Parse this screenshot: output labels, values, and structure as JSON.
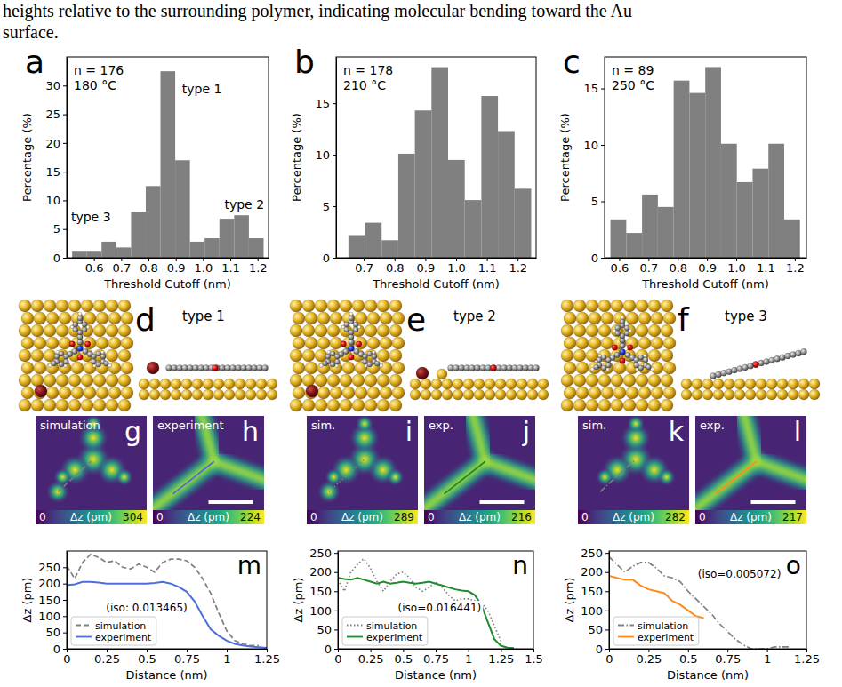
{
  "caption": [
    "heights relative to the surrounding polymer, indicating molecular bending toward the Au",
    "surface."
  ],
  "chart_data": [
    {
      "type": "histogram",
      "letter": "a",
      "annotations": [
        "n = 176",
        "180 °C",
        "type 1",
        "type 2",
        "type 3"
      ],
      "xlabel": "Threshold Cutoff (nm)",
      "ylabel": "Percentage (%)",
      "color": "#808080",
      "bins": [
        0.52,
        0.574,
        0.628,
        0.682,
        0.736,
        0.79,
        0.844,
        0.898,
        0.952,
        1.006,
        1.06,
        1.114,
        1.168,
        1.222
      ],
      "values": [
        1.2,
        1.2,
        2.8,
        1.8,
        8.0,
        12.5,
        32.5,
        17.0,
        2.8,
        3.4,
        6.8,
        7.4,
        3.4
      ],
      "xlim": [
        0.5,
        1.24
      ],
      "ylim": [
        0,
        35
      ],
      "xticks": [
        0.6,
        0.7,
        0.8,
        0.9,
        {
          "value": 1,
          "label": "1.0"
        },
        1.1,
        1.2
      ],
      "yticks": [
        0,
        5,
        10,
        15,
        20,
        25,
        30
      ]
    },
    {
      "type": "histogram",
      "letter": "b",
      "annotations": [
        "n = 178",
        "210 °C"
      ],
      "xlabel": "Threshold Cutoff (nm)",
      "ylabel": "Percentage (%)",
      "color": "#808080",
      "bins": [
        0.65,
        0.704,
        0.758,
        0.812,
        0.866,
        0.92,
        0.974,
        1.028,
        1.082,
        1.136,
        1.19,
        1.244
      ],
      "values": [
        2.2,
        3.4,
        1.7,
        10.1,
        14.3,
        18.5,
        9.5,
        5.6,
        15.7,
        12.3,
        6.7
      ],
      "xlim": [
        0.61,
        1.26
      ],
      "ylim": [
        0,
        19.5
      ],
      "xticks": [
        0.7,
        0.8,
        0.9,
        {
          "value": 1,
          "label": "1.0"
        },
        1.1,
        1.2
      ],
      "yticks": [
        0,
        5,
        10,
        15
      ]
    },
    {
      "type": "histogram",
      "letter": "c",
      "annotations": [
        "n = 89",
        "250 °C"
      ],
      "xlabel": "Threshold Cutoff (nm)",
      "ylabel": "Percentage (%)",
      "color": "#808080",
      "bins": [
        0.57,
        0.624,
        0.678,
        0.732,
        0.786,
        0.84,
        0.894,
        0.948,
        1.002,
        1.056,
        1.11,
        1.164,
        1.218
      ],
      "values": [
        3.4,
        2.2,
        5.6,
        4.5,
        15.7,
        14.6,
        16.9,
        10.1,
        6.7,
        7.9,
        10.1,
        3.4
      ],
      "xlim": [
        0.55,
        1.24
      ],
      "ylim": [
        0,
        17.8
      ],
      "xticks": [
        0.6,
        0.7,
        0.8,
        0.9,
        {
          "value": 1,
          "label": "1.0"
        },
        1.1,
        1.2
      ],
      "yticks": [
        0,
        5,
        10,
        15
      ]
    },
    {
      "type": "line",
      "letter": "m",
      "annotations": [
        "(iso: 0.013465)"
      ],
      "legend": "lower left",
      "xlabel": "Distance (nm)",
      "ylabel": "Δz (pm)",
      "x": [
        0,
        0.05,
        0.1,
        0.15,
        0.2,
        0.25,
        0.3,
        0.35,
        0.4,
        0.45,
        0.5,
        0.55,
        0.6,
        0.65,
        0.7,
        0.75,
        0.8,
        0.85,
        0.9,
        0.95,
        1.0,
        1.05,
        1.1,
        1.15,
        1.2,
        1.25
      ],
      "series": [
        {
          "name": "simulation",
          "color": "#808080",
          "line_style": "dashed",
          "values": [
            255,
            215,
            265,
            290,
            280,
            265,
            270,
            250,
            245,
            260,
            250,
            235,
            265,
            275,
            275,
            270,
            250,
            215,
            170,
            110,
            55,
            25,
            15,
            10,
            10,
            null
          ]
        },
        {
          "name": "experiment",
          "color": "#4a6fdc",
          "line_style": "solid",
          "values": [
            195,
            198,
            205,
            205,
            203,
            200,
            200,
            200,
            200,
            200,
            200,
            202,
            205,
            200,
            190,
            175,
            145,
            100,
            60,
            40,
            25,
            15,
            10,
            7,
            5,
            3
          ]
        }
      ],
      "xlim": [
        0,
        1.25
      ],
      "ylim": [
        0,
        300
      ],
      "xticks": [
        0,
        0.25,
        0.5,
        0.75,
        1,
        1.25
      ],
      "yticks": [
        0,
        50,
        100,
        150,
        200,
        250
      ]
    },
    {
      "type": "line",
      "letter": "n",
      "annotations": [
        "(iso=0.016441)"
      ],
      "legend": "lower left",
      "xlabel": "Distance (nm)",
      "ylabel": "Δz (pm)",
      "x": [
        0,
        0.05,
        0.1,
        0.15,
        0.2,
        0.25,
        0.3,
        0.35,
        0.4,
        0.45,
        0.5,
        0.55,
        0.6,
        0.65,
        0.7,
        0.75,
        0.8,
        0.85,
        0.9,
        0.95,
        1.0,
        1.05,
        1.1,
        1.15,
        1.2,
        1.25,
        1.3,
        1.35
      ],
      "series": [
        {
          "name": "simulation",
          "color": "#808080",
          "line_style": "dotted",
          "values": [
            180,
            150,
            200,
            220,
            235,
            210,
            175,
            150,
            175,
            195,
            200,
            185,
            160,
            150,
            160,
            175,
            160,
            140,
            125,
            130,
            130,
            125,
            120,
            100,
            60,
            20,
            null,
            null
          ]
        },
        {
          "name": "experiment",
          "color": "#1f8a2e",
          "line_style": "solid",
          "values": [
            185,
            182,
            180,
            185,
            180,
            175,
            170,
            175,
            170,
            172,
            175,
            172,
            170,
            172,
            175,
            170,
            165,
            160,
            155,
            152,
            150,
            140,
            115,
            70,
            25,
            8,
            3,
            2
          ]
        }
      ],
      "xlim": [
        0,
        1.5
      ],
      "ylim": [
        0,
        255
      ],
      "xticks": [
        0,
        0.25,
        0.5,
        0.75,
        1,
        1.25,
        1.5
      ],
      "yticks": [
        0,
        50,
        100,
        150,
        200,
        250
      ]
    },
    {
      "type": "line",
      "letter": "o",
      "annotations": [
        "(iso=0.005072)"
      ],
      "legend": "lower left",
      "xlabel": "Distance (nm)",
      "ylabel": "Δz (pm)",
      "x": [
        0,
        0.05,
        0.1,
        0.15,
        0.2,
        0.25,
        0.3,
        0.35,
        0.4,
        0.45,
        0.5,
        0.55,
        0.6,
        0.65,
        0.7,
        0.75,
        0.8,
        0.85,
        0.9,
        0.95,
        1.0,
        1.05,
        1.1,
        1.15
      ],
      "series": [
        {
          "name": "simulation",
          "color": "#808080",
          "line_style": "dashdot",
          "values": [
            240,
            220,
            200,
            215,
            225,
            225,
            210,
            190,
            185,
            175,
            150,
            130,
            110,
            90,
            65,
            45,
            25,
            10,
            0,
            0,
            0,
            5,
            5,
            5
          ]
        },
        {
          "name": "experiment",
          "color": "#ff8c1a",
          "line_style": "solid",
          "values": [
            190,
            185,
            180,
            180,
            165,
            155,
            150,
            145,
            125,
            115,
            100,
            85,
            80,
            null,
            null,
            null,
            null,
            null,
            null,
            null,
            null,
            null,
            null,
            null
          ]
        }
      ],
      "xlim": [
        0,
        1.25
      ],
      "ylim": [
        0,
        255
      ],
      "xticks": [
        0,
        0.25,
        0.5,
        0.75,
        1,
        1.25
      ],
      "yticks": [
        0,
        50,
        100,
        150,
        200,
        250
      ]
    }
  ],
  "models": [
    {
      "letter": "d",
      "title": "type 1"
    },
    {
      "letter": "e",
      "title": "type 2"
    },
    {
      "letter": "f",
      "title": "type 3"
    }
  ],
  "images": [
    {
      "letter": "g",
      "label": "simulation",
      "colorbar": {
        "label": "Δz (pm)",
        "range": [
          0,
          304
        ]
      }
    },
    {
      "letter": "h",
      "label": "experiment",
      "colorbar": {
        "label": "Δz (pm)",
        "range": [
          0,
          224
        ]
      }
    },
    {
      "letter": "i",
      "label": "sim.",
      "colorbar": {
        "label": "Δz (pm)",
        "range": [
          0,
          289
        ]
      }
    },
    {
      "letter": "j",
      "label": "exp.",
      "colorbar": {
        "label": "Δz (pm)",
        "range": [
          0,
          216
        ]
      }
    },
    {
      "letter": "k",
      "label": "sim.",
      "colorbar": {
        "label": "Δz (pm)",
        "range": [
          0,
          282
        ]
      }
    },
    {
      "letter": "l",
      "label": "exp.",
      "colorbar": {
        "label": "Δz (pm)",
        "range": [
          0,
          217
        ]
      }
    }
  ]
}
